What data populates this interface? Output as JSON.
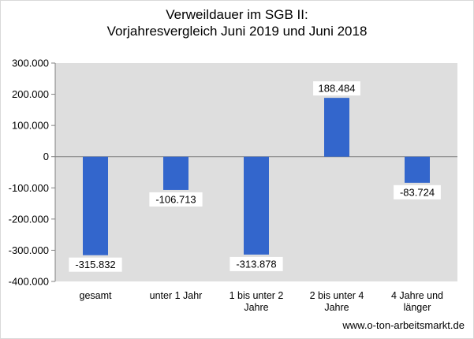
{
  "chart_data": {
    "type": "bar",
    "title": [
      "Verweildauer im SGB II:",
      "Vorjahresvergleich Juni 2019 und Juni 2018"
    ],
    "categories": [
      [
        "gesamt"
      ],
      [
        "unter 1 Jahr"
      ],
      [
        "1 bis unter 2",
        "Jahre"
      ],
      [
        "2 bis unter 4",
        "Jahre"
      ],
      [
        "4 Jahre und",
        "länger"
      ]
    ],
    "values": [
      -315832,
      -106713,
      -313878,
      188484,
      -83724
    ],
    "data_labels": [
      "-315.832",
      "-106.713",
      "-313.878",
      "188.484",
      "-83.724"
    ],
    "ylim": [
      -400000,
      300000
    ],
    "yticks": [
      300000,
      200000,
      100000,
      0,
      -100000,
      -200000,
      -300000,
      -400000
    ],
    "ytick_labels": [
      "300.000",
      "200.000",
      "100.000",
      "0",
      "-100.000",
      "-200.000",
      "-300.000",
      "-400.000"
    ],
    "grid": false,
    "legend": "none",
    "colors": {
      "bar": "#3366cc",
      "plot_bg": "#dedede",
      "axis": "#808080"
    }
  },
  "source": "www.o-ton-arbeitsmarkt.de"
}
